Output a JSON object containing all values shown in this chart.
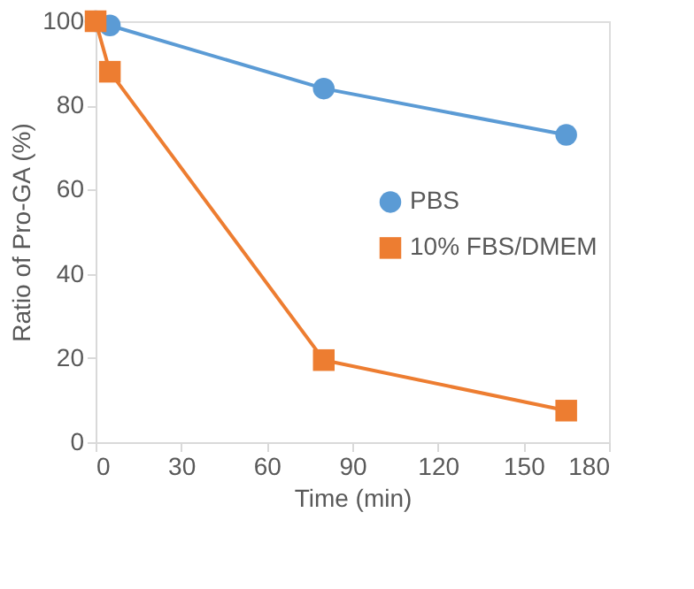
{
  "chart_data": {
    "type": "line",
    "xlabel": "Time (min)",
    "ylabel": "Ratio of Pro-GA (%)",
    "xlim": [
      0,
      180
    ],
    "xticks": [
      0,
      30,
      60,
      90,
      120,
      150,
      180
    ],
    "ylim": [
      0,
      100
    ],
    "yticks": [
      0,
      20,
      40,
      60,
      80,
      100
    ],
    "grid": false,
    "legend": "right",
    "line_style": "solid",
    "series": [
      {
        "name": "PBS",
        "color": "#5b9bd5",
        "marker": "circle",
        "x": [
          0,
          5,
          80,
          165
        ],
        "values": [
          100,
          99,
          84,
          73
        ]
      },
      {
        "name": "10% FBS/DMEM",
        "color": "#ed7d31",
        "marker": "square",
        "x": [
          0,
          5,
          80,
          165
        ],
        "values": [
          100,
          88,
          19.5,
          7.5
        ]
      }
    ]
  }
}
